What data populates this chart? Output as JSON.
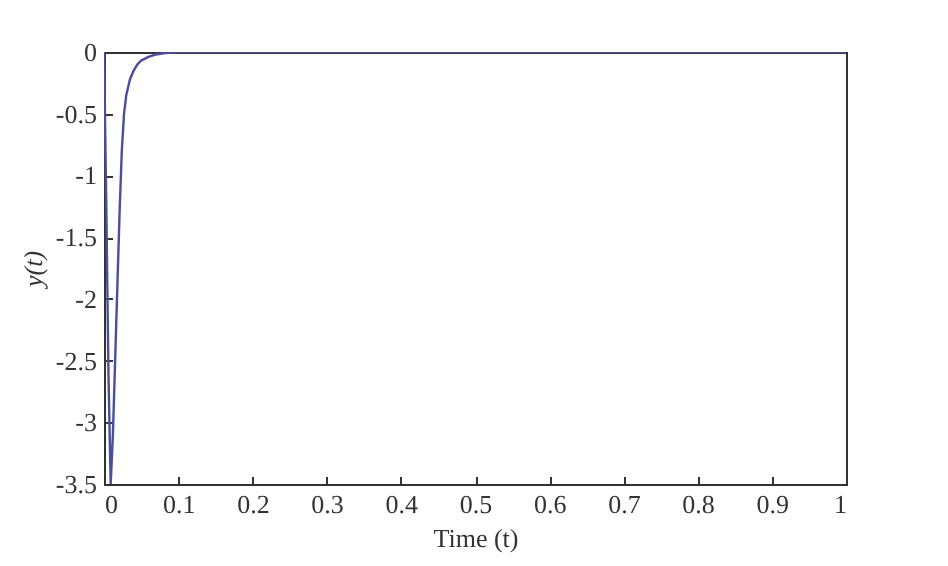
{
  "chart_data": {
    "type": "line",
    "xlabel": "Time (t)",
    "ylabel": "y(t)",
    "series": [
      {
        "color": "#4a4f9c",
        "x": [
          0,
          0.003,
          0.006,
          0.009,
          0.012,
          0.015,
          0.018,
          0.021,
          0.024,
          0.027,
          0.03,
          0.035,
          0.04,
          0.045,
          0.05,
          0.06,
          0.07,
          0.08,
          0.1,
          0.2,
          0.4,
          0.6,
          0.8,
          1
        ],
        "values": [
          0,
          -1.2,
          -2.6,
          -3.5,
          -3.1,
          -2.5,
          -1.9,
          -1.3,
          -0.8,
          -0.5,
          -0.35,
          -0.22,
          -0.15,
          -0.1,
          -0.07,
          -0.04,
          -0.02,
          -0.01,
          0,
          0,
          0,
          0,
          0,
          0
        ]
      }
    ],
    "xlim": [
      0,
      1
    ],
    "ylim": [
      -3.5,
      0
    ],
    "xticks": [
      0,
      0.1,
      0.2,
      0.3,
      0.4,
      0.5,
      0.6,
      0.7,
      0.8,
      0.9,
      1
    ],
    "yticks": [
      -3.5,
      -3,
      -2.5,
      -2,
      -1.5,
      -1,
      -0.5,
      0
    ],
    "grid": false,
    "marker": "none",
    "line_style": "solid"
  }
}
